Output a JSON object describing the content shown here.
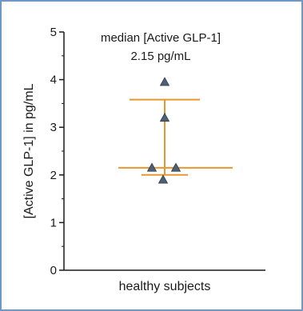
{
  "chart_data": {
    "type": "scatter",
    "title": "",
    "xlabel": "",
    "ylabel": "[Active GLP-1] in pg/mL",
    "categories": [
      "healthy subjects"
    ],
    "ylim": [
      0,
      5
    ],
    "yticks": [
      "0",
      "1",
      "2",
      "3",
      "4",
      "5"
    ],
    "grid": false,
    "points": [
      {
        "y": 3.95
      },
      {
        "y": 3.2
      },
      {
        "y": 2.15
      },
      {
        "y": 2.15
      },
      {
        "y": 1.9
      }
    ],
    "median": 2.15,
    "error_bar": {
      "upper": 3.58,
      "lower": 2.0
    },
    "annotation": {
      "line1": "median [Active GLP-1]",
      "line2": "2.15 pg/mL"
    },
    "colors": {
      "marker": "#4d6075",
      "line": "#e8962e",
      "frame": "#6f98c6"
    }
  }
}
